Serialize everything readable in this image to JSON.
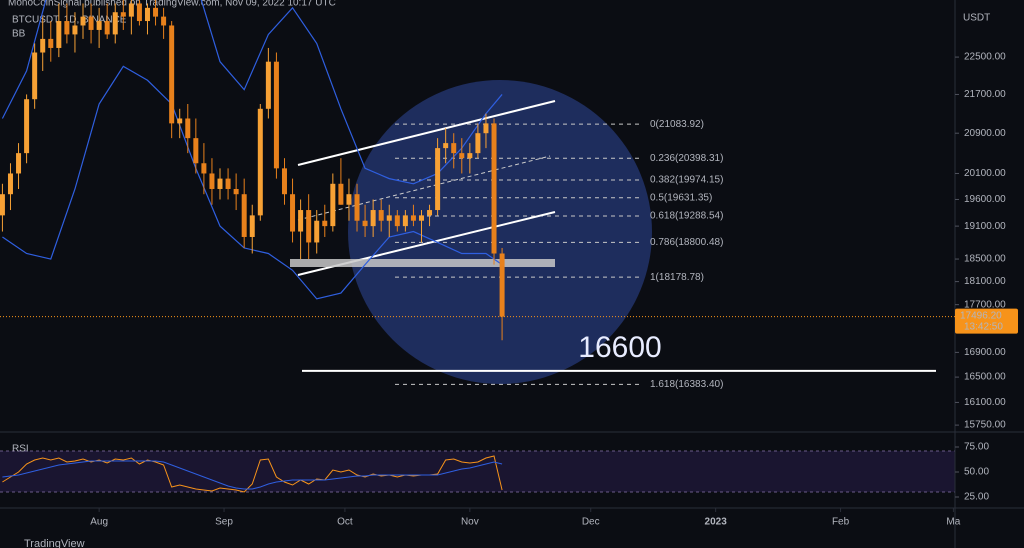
{
  "header": "MonoCoinSignal published on TradingView.com, Nov 09, 2022 10:17 UTC",
  "footer": "TradingView",
  "chart_data": [
    {
      "type": "candlestick",
      "title": "BTCUSDT, 1D, BINANCE",
      "indicator": "BB",
      "y_axis_label": "USDT",
      "log_scale": true,
      "up_color": "#f7a135",
      "down_color": "#e8811c",
      "x": [
        -24,
        -22,
        -20,
        -18,
        -16,
        -14,
        -12,
        -10,
        -8,
        -6,
        -4,
        -2,
        0,
        2,
        4,
        6,
        8,
        10,
        12,
        14,
        16,
        18,
        20,
        22,
        24,
        26,
        28,
        30,
        32,
        34,
        36,
        38,
        40,
        42,
        44,
        46,
        48,
        50,
        52,
        54,
        56,
        58,
        60,
        62,
        64,
        66,
        68,
        70,
        72,
        74,
        76,
        78,
        80,
        82,
        84,
        86,
        88,
        90,
        92,
        94,
        96,
        98,
        100
      ],
      "open": [
        19300,
        19700,
        20100,
        20500,
        21600,
        22600,
        22900,
        22700,
        23300,
        23000,
        23200,
        23400,
        23100,
        23300,
        23000,
        23500,
        23400,
        23700,
        23300,
        23600,
        23400,
        23200,
        21100,
        21200,
        20800,
        20300,
        20100,
        19800,
        20000,
        19800,
        19700,
        18900,
        19300,
        21400,
        22400,
        20200,
        19700,
        19000,
        19400,
        18800,
        19200,
        19100,
        19900,
        19500,
        19700,
        19200,
        19100,
        19400,
        19200,
        19300,
        19100,
        19300,
        19200,
        19300,
        19400,
        20600,
        20700,
        20500,
        20400,
        20500,
        20900,
        21100,
        18600
      ],
      "high": [
        19900,
        20300,
        20700,
        21700,
        22800,
        23400,
        23300,
        23700,
        23700,
        23500,
        23700,
        23700,
        23600,
        23700,
        23700,
        23800,
        23800,
        23800,
        23700,
        23800,
        23600,
        23300,
        21400,
        21500,
        21200,
        20700,
        20400,
        20200,
        20200,
        20100,
        20000,
        19500,
        21500,
        22700,
        22600,
        20400,
        20000,
        19600,
        19700,
        19400,
        19500,
        20100,
        20400,
        20000,
        19900,
        19500,
        19600,
        19600,
        19500,
        19400,
        19400,
        19500,
        19400,
        19500,
        20800,
        21000,
        20900,
        20800,
        20700,
        21100,
        21300,
        21200,
        18700
      ],
      "low": [
        19000,
        19400,
        19800,
        20300,
        21400,
        22200,
        22400,
        22500,
        22800,
        22600,
        22900,
        22800,
        22700,
        22900,
        22800,
        23100,
        23000,
        23200,
        23000,
        23200,
        22900,
        20800,
        20800,
        20500,
        20100,
        19700,
        19500,
        19600,
        19600,
        19400,
        18700,
        18600,
        19200,
        21200,
        20000,
        19500,
        18800,
        18500,
        18500,
        18600,
        18900,
        19000,
        19500,
        19200,
        19000,
        18900,
        18900,
        19000,
        18900,
        19000,
        19000,
        19100,
        18800,
        19100,
        19300,
        20300,
        20200,
        20100,
        20100,
        20400,
        20600,
        18400,
        17100
      ],
      "close": [
        19700,
        20100,
        20500,
        21600,
        22600,
        22900,
        22700,
        23300,
        23000,
        23200,
        23400,
        23100,
        23300,
        23000,
        23500,
        23400,
        23700,
        23300,
        23600,
        23400,
        23200,
        21100,
        21200,
        20800,
        20300,
        20100,
        19800,
        20000,
        19800,
        19700,
        18900,
        19300,
        21400,
        22400,
        20200,
        19700,
        19000,
        19400,
        18800,
        19200,
        19100,
        19900,
        19500,
        19700,
        19200,
        19100,
        19400,
        19200,
        19300,
        19100,
        19300,
        19200,
        19300,
        19400,
        20600,
        20700,
        20500,
        20400,
        20500,
        20900,
        21100,
        18600,
        17496.2
      ],
      "bands": {
        "color": "#2f5fe0",
        "x": [
          -24,
          -18,
          -12,
          -6,
          0,
          6,
          12,
          18,
          24,
          30,
          36,
          42,
          48,
          54,
          60,
          66,
          72,
          78,
          84,
          90,
          96,
          100
        ],
        "upper": [
          21200,
          22200,
          24200,
          24500,
          24300,
          24400,
          24300,
          24500,
          24200,
          22400,
          21800,
          23000,
          23600,
          22800,
          21400,
          20200,
          20000,
          19900,
          20100,
          20600,
          21300,
          21700
        ],
        "lower": [
          18900,
          18600,
          18500,
          19800,
          21500,
          22300,
          22000,
          21500,
          20200,
          19100,
          18700,
          18600,
          18300,
          17800,
          17900,
          18400,
          18900,
          19000,
          18800,
          18600,
          18600,
          18400
        ]
      },
      "xlim": [
        -24.6,
        212.4
      ],
      "xticks": [
        {
          "value": 0,
          "label": "Aug"
        },
        {
          "value": 31,
          "label": "Sep"
        },
        {
          "value": 61,
          "label": "Oct"
        },
        {
          "value": 92,
          "label": "Nov"
        },
        {
          "value": 122,
          "label": "Dec"
        },
        {
          "value": 153,
          "label": "2023"
        },
        {
          "value": 184,
          "label": "Feb"
        },
        {
          "value": 212,
          "label": "Ma"
        }
      ],
      "ylim": [
        15645,
        23780
      ],
      "yticks": [
        {
          "value": 22500,
          "label": "22500.00"
        },
        {
          "value": 21700,
          "label": "21700.00"
        },
        {
          "value": 20900,
          "label": "20900.00"
        },
        {
          "value": 20100,
          "label": "20100.00"
        },
        {
          "value": 19600,
          "label": "19600.00"
        },
        {
          "value": 19100,
          "label": "19100.00"
        },
        {
          "value": 18500,
          "label": "18500.00"
        },
        {
          "value": 18100,
          "label": "18100.00"
        },
        {
          "value": 17700,
          "label": "17700.00"
        },
        {
          "value": 16900,
          "label": "16900.00"
        },
        {
          "value": 16500,
          "label": "16500.00"
        },
        {
          "value": 16100,
          "label": "16100.00"
        },
        {
          "value": 15750,
          "label": "15750.00"
        }
      ],
      "last_price": {
        "value": 17496.2,
        "label": "17496.20"
      },
      "countdown": "13:42:50",
      "fib_levels": [
        {
          "value": 21083.92,
          "label": "0(21083.92)"
        },
        {
          "value": 20398.31,
          "label": "0.236(20398.31)"
        },
        {
          "value": 19974.15,
          "label": "0.382(19974.15)"
        },
        {
          "value": 19631.35,
          "label": "0.5(19631.35)"
        },
        {
          "value": 19288.54,
          "label": "0.618(19288.54)"
        },
        {
          "value": 18800.48,
          "label": "0.786(18800.48)"
        },
        {
          "value": 18178.78,
          "label": "1(18178.78)"
        },
        {
          "value": 16383.4,
          "label": "1.618(16383.40)"
        }
      ],
      "target": 16600
    },
    {
      "type": "line",
      "title": "RSI",
      "ylim": [
        17,
        85
      ],
      "yticks": [
        {
          "value": 75,
          "label": "75.00"
        },
        {
          "value": 50,
          "label": "50.00"
        },
        {
          "value": 25,
          "label": "25.00"
        }
      ],
      "series": [
        {
          "color": "#f7931a",
          "values": [
            40,
            45,
            50,
            58,
            62,
            64,
            62,
            64,
            60,
            61,
            63,
            60,
            62,
            59,
            63,
            62,
            64,
            58,
            62,
            60,
            57,
            35,
            37,
            35,
            33,
            32,
            31,
            34,
            33,
            32,
            30,
            38,
            62,
            63,
            45,
            40,
            37,
            42,
            38,
            43,
            42,
            52,
            50,
            52,
            47,
            45,
            48,
            46,
            47,
            45,
            47,
            46,
            47,
            47,
            48,
            62,
            63,
            60,
            59,
            60,
            64,
            66,
            32
          ]
        },
        {
          "color": "#2f5fe0",
          "values": [
            45,
            46,
            47,
            49,
            51,
            53,
            55,
            57,
            58,
            59,
            60,
            61,
            61,
            61,
            61,
            61,
            61,
            61,
            61,
            61,
            60,
            57,
            54,
            51,
            48,
            45,
            42,
            39,
            36,
            34,
            33,
            33,
            35,
            38,
            40,
            41,
            42,
            42,
            42,
            42,
            42,
            43,
            44,
            45,
            46,
            46,
            47,
            47,
            47,
            47,
            47,
            47,
            47,
            47,
            47,
            49,
            51,
            53,
            54,
            56,
            58,
            60,
            58
          ]
        }
      ]
    }
  ]
}
